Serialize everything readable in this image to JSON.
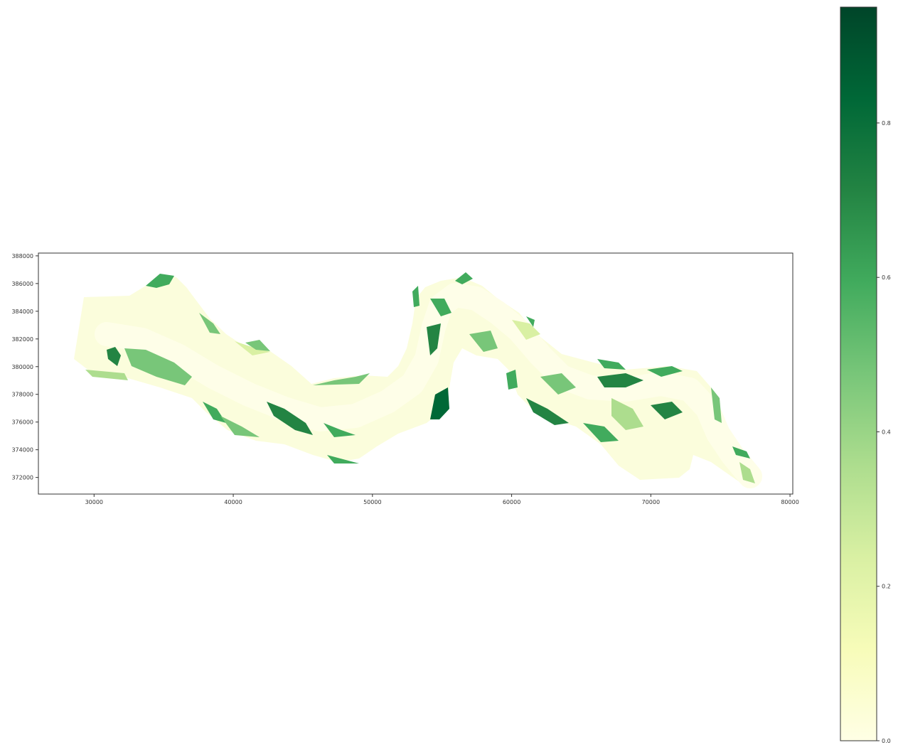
{
  "chart_data": {
    "type": "heatmap",
    "title": "",
    "xlabel": "",
    "ylabel": "",
    "colormap": "Greens-to-YlGn",
    "xlim": [
      26000,
      80200
    ],
    "ylim": [
      370800,
      388200
    ],
    "x_ticks": [
      30000,
      40000,
      50000,
      60000,
      70000,
      80000
    ],
    "x_tick_labels": [
      "30000",
      "40000",
      "50000",
      "60000",
      "70000",
      "80000"
    ],
    "y_ticks": [
      372000,
      374000,
      376000,
      378000,
      380000,
      382000,
      384000,
      386000,
      388000
    ],
    "y_tick_labels": [
      "372000",
      "374000",
      "376000",
      "378000",
      "380000",
      "382000",
      "384000",
      "386000",
      "388000"
    ],
    "grid": false,
    "colorbar": {
      "range": [
        0.0,
        0.95
      ],
      "ticks": [
        0.0,
        0.2,
        0.4,
        0.6,
        0.8
      ],
      "tick_labels": [
        "0.0",
        "0.2",
        "0.4",
        "0.6",
        "0.8"
      ],
      "colors": [
        "#ffffe5",
        "#f7fcb9",
        "#d9f0a3",
        "#addd8e",
        "#78c679",
        "#41ab5d",
        "#238443",
        "#006837",
        "#004529"
      ]
    }
  }
}
